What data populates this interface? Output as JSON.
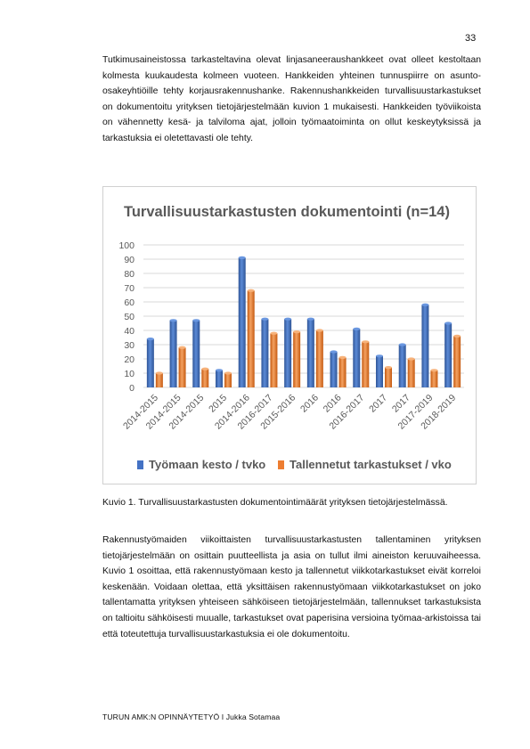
{
  "page_number": "33",
  "paragraph_1": "Tutkimusaineistossa tarkasteltavina olevat linjasaneeraushankkeet ovat olleet kestoltaan kolmesta kuukaudesta kolmeen vuoteen. Hankkeiden yhteinen tunnuspiirre on asunto-osakeyhtiöille tehty korjausrakennushanke. Rakennushankkeiden turvallisuustarkastukset on dokumentoitu yrityksen tietojärjestelmään kuvion 1 mukaisesti. Hankkeiden työviikoista on vähennetty kesä- ja talviloma ajat, jolloin työmaatoiminta on ollut keskeytyksissä ja tarkastuksia ei oletettavasti ole tehty.",
  "caption": "Kuvio 1. Turvallisuustarkastusten dokumentointimäärät yrityksen tietojärjestelmässä.",
  "paragraph_2": "Rakennustyömaiden viikoittaisten turvallisuustarkastusten tallentaminen yrityksen tietojärjestelmään on osittain puutteellista ja asia on tullut ilmi aineiston keruuvaiheessa. Kuvio 1 osoittaa, että rakennustyömaan kesto ja tallennetut viikkotarkastukset eivät korreloi keskenään. Voidaan olettaa, että yksittäisen rakennustyömaan viikkotarkastukset on joko tallentamatta yrityksen yhteiseen sähköiseen tietojärjestelmään, tallennukset tarkastuksista on taltioitu sähköisesti muualle, tarkastukset ovat paperisina versioina työmaa-arkistoissa tai että toteutettuja turvallisuustarkastuksia ei ole dokumentoitu.",
  "footer": "TURUN AMK:N OPINNÄYTETYÖ I Jukka Sotamaa",
  "chart_data": {
    "type": "bar",
    "title": "Turvallisuustarkastusten dokumentointi (n=14)",
    "categories": [
      "2014-2015",
      "2014-2015",
      "2014-2015",
      "2015",
      "2014-2016",
      "2016-2017",
      "2015-2016",
      "2016",
      "2016",
      "2016-2017",
      "2017",
      "2017",
      "2017-2019",
      "2018-2019"
    ],
    "series": [
      {
        "name": "Työmaan kesto / tvko",
        "color": "#4472c4",
        "values": [
          34,
          47,
          47,
          12,
          91,
          48,
          48,
          48,
          25,
          41,
          22,
          30,
          58,
          45
        ]
      },
      {
        "name": "Tallennetut tarkastukset / vko",
        "color": "#ed7d31",
        "values": [
          10,
          28,
          13,
          10,
          68,
          38,
          39,
          40,
          21,
          32,
          14,
          20,
          12,
          36
        ]
      }
    ],
    "yticks": [
      "0",
      "10",
      "20",
      "30",
      "40",
      "50",
      "60",
      "70",
      "80",
      "90",
      "100"
    ],
    "ylim": [
      0,
      100
    ],
    "grid": true,
    "legend": "bottom"
  }
}
